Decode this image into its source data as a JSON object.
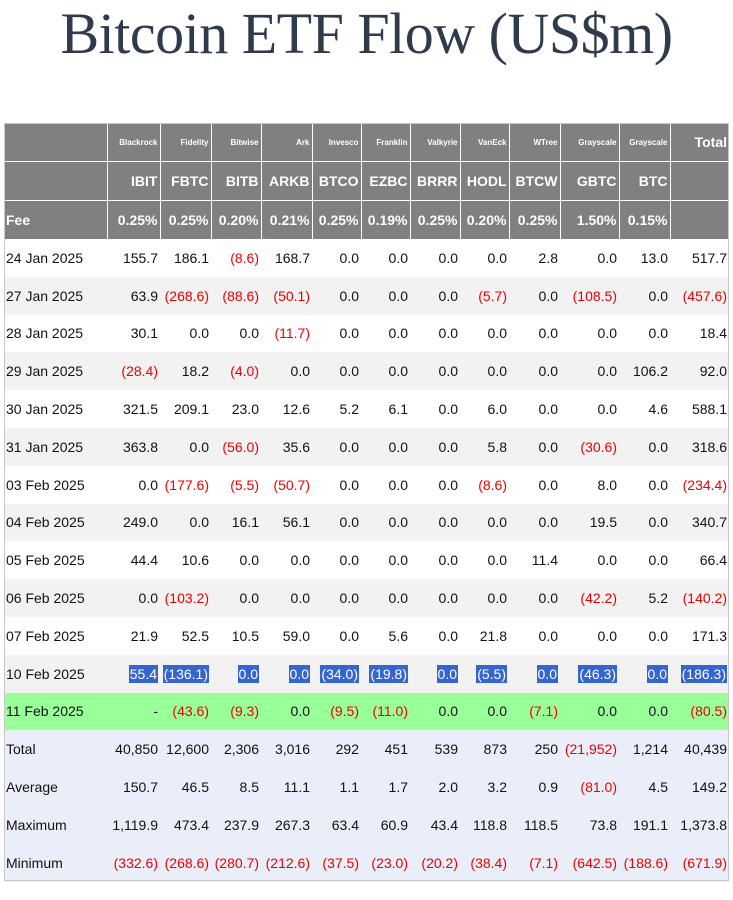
{
  "title": "Bitcoin ETF Flow (US$m)",
  "colors": {
    "header_bg": "#808080",
    "negative": "#ee0000",
    "highlight": "#3465d1",
    "today_row": "#99ff99",
    "summary_bg": "#eaeef8"
  },
  "issuers": [
    "Blackrock",
    "Fidelity",
    "Bitwise",
    "Ark",
    "Invesco",
    "Franklin",
    "Valkyrie",
    "VanEck",
    "WTree",
    "Grayscale",
    "Grayscale"
  ],
  "total_header": "Total",
  "tickers": [
    "IBIT",
    "FBTC",
    "BITB",
    "ARKB",
    "BTCO",
    "EZBC",
    "BRRR",
    "HODL",
    "BTCW",
    "GBTC",
    "BTC"
  ],
  "fee_label": "Fee",
  "fees": [
    "0.25%",
    "0.25%",
    "0.20%",
    "0.21%",
    "0.25%",
    "0.19%",
    "0.25%",
    "0.20%",
    "0.25%",
    "1.50%",
    "0.15%"
  ],
  "rows": [
    {
      "date": "24 Jan 2025",
      "values": [
        "155.7",
        "186.1",
        "(8.6)",
        "168.7",
        "0.0",
        "0.0",
        "0.0",
        "0.0",
        "2.8",
        "0.0",
        "13.0"
      ],
      "total": "517.7"
    },
    {
      "date": "27 Jan 2025",
      "values": [
        "63.9",
        "(268.6)",
        "(88.6)",
        "(50.1)",
        "0.0",
        "0.0",
        "0.0",
        "(5.7)",
        "0.0",
        "(108.5)",
        "0.0"
      ],
      "total": "(457.6)"
    },
    {
      "date": "28 Jan 2025",
      "values": [
        "30.1",
        "0.0",
        "0.0",
        "(11.7)",
        "0.0",
        "0.0",
        "0.0",
        "0.0",
        "0.0",
        "0.0",
        "0.0"
      ],
      "total": "18.4"
    },
    {
      "date": "29 Jan 2025",
      "values": [
        "(28.4)",
        "18.2",
        "(4.0)",
        "0.0",
        "0.0",
        "0.0",
        "0.0",
        "0.0",
        "0.0",
        "0.0",
        "106.2"
      ],
      "total": "92.0"
    },
    {
      "date": "30 Jan 2025",
      "values": [
        "321.5",
        "209.1",
        "23.0",
        "12.6",
        "5.2",
        "6.1",
        "0.0",
        "6.0",
        "0.0",
        "0.0",
        "4.6"
      ],
      "total": "588.1"
    },
    {
      "date": "31 Jan 2025",
      "values": [
        "363.8",
        "0.0",
        "(56.0)",
        "35.6",
        "0.0",
        "0.0",
        "0.0",
        "5.8",
        "0.0",
        "(30.6)",
        "0.0"
      ],
      "total": "318.6"
    },
    {
      "date": "03 Feb 2025",
      "values": [
        "0.0",
        "(177.6)",
        "(5.5)",
        "(50.7)",
        "0.0",
        "0.0",
        "0.0",
        "(8.6)",
        "0.0",
        "8.0",
        "0.0"
      ],
      "total": "(234.4)"
    },
    {
      "date": "04 Feb 2025",
      "values": [
        "249.0",
        "0.0",
        "16.1",
        "56.1",
        "0.0",
        "0.0",
        "0.0",
        "0.0",
        "0.0",
        "19.5",
        "0.0"
      ],
      "total": "340.7"
    },
    {
      "date": "05 Feb 2025",
      "values": [
        "44.4",
        "10.6",
        "0.0",
        "0.0",
        "0.0",
        "0.0",
        "0.0",
        "0.0",
        "11.4",
        "0.0",
        "0.0"
      ],
      "total": "66.4"
    },
    {
      "date": "06 Feb 2025",
      "values": [
        "0.0",
        "(103.2)",
        "0.0",
        "0.0",
        "0.0",
        "0.0",
        "0.0",
        "0.0",
        "0.0",
        "(42.2)",
        "5.2"
      ],
      "total": "(140.2)"
    },
    {
      "date": "07 Feb 2025",
      "values": [
        "21.9",
        "52.5",
        "10.5",
        "59.0",
        "0.0",
        "5.6",
        "0.0",
        "21.8",
        "0.0",
        "0.0",
        "0.0"
      ],
      "total": "171.3"
    },
    {
      "date": "10 Feb 2025",
      "values": [
        "55.4",
        "(136.1)",
        "0.0",
        "0.0",
        "(34.0)",
        "(19.8)",
        "0.0",
        "(5.5)",
        "0.0",
        "(46.3)",
        "0.0"
      ],
      "total": "(186.3)",
      "selected": true
    },
    {
      "date": "11 Feb 2025",
      "values": [
        "-",
        "(43.6)",
        "(9.3)",
        "0.0",
        "(9.5)",
        "(11.0)",
        "0.0",
        "0.0",
        "(7.1)",
        "0.0",
        "0.0"
      ],
      "total": "(80.5)",
      "today": true
    }
  ],
  "summary": [
    {
      "label": "Total",
      "values": [
        "40,850",
        "12,600",
        "2,306",
        "3,016",
        "292",
        "451",
        "539",
        "873",
        "250",
        "(21,952)",
        "1,214"
      ],
      "total": "40,439"
    },
    {
      "label": "Average",
      "values": [
        "150.7",
        "46.5",
        "8.5",
        "11.1",
        "1.1",
        "1.7",
        "2.0",
        "3.2",
        "0.9",
        "(81.0)",
        "4.5"
      ],
      "total": "149.2"
    },
    {
      "label": "Maximum",
      "values": [
        "1,119.9",
        "473.4",
        "237.9",
        "267.3",
        "63.4",
        "60.9",
        "43.4",
        "118.8",
        "118.5",
        "73.8",
        "191.1"
      ],
      "total": "1,373.8"
    },
    {
      "label": "Minimum",
      "values": [
        "(332.6)",
        "(268.6)",
        "(280.7)",
        "(212.6)",
        "(37.5)",
        "(23.0)",
        "(20.2)",
        "(38.4)",
        "(7.1)",
        "(642.5)",
        "(188.6)"
      ],
      "total": "(671.9)"
    }
  ]
}
